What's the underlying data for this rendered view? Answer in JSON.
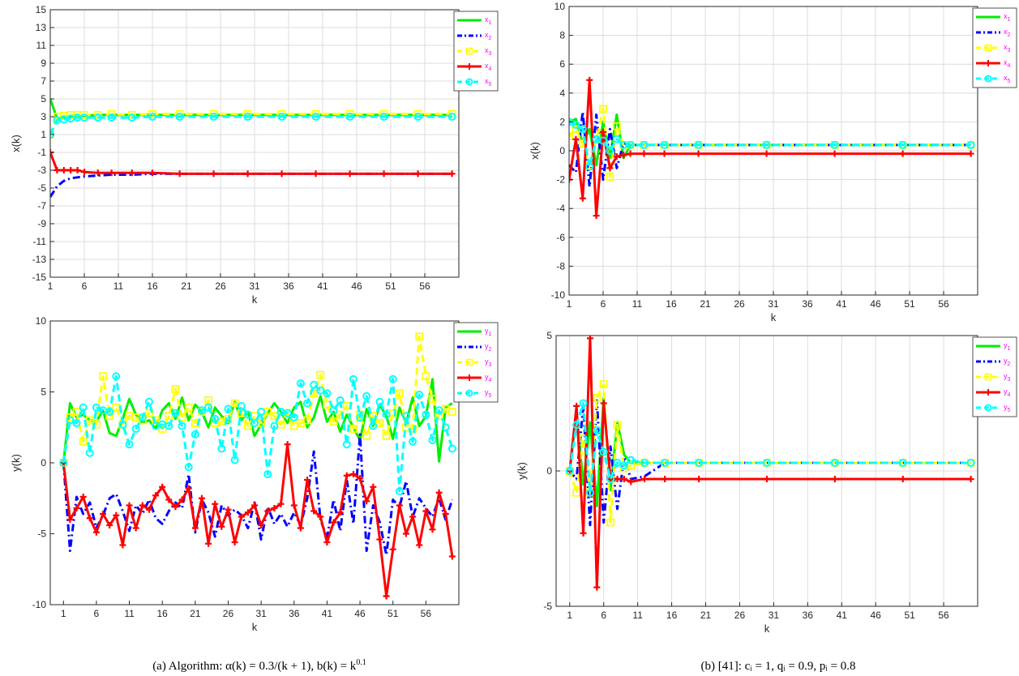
{
  "panels": {
    "a": {
      "caption": "(a) Algorithm: α(k) = 0.3/(k + 1), b(k) = k"
    },
    "b": {
      "caption": "(b) [41]: cᵢ = 1, qᵢ = 0.9, pᵢ = 0.8"
    }
  },
  "chart_data": [
    {
      "type": "line",
      "xlabel": "k",
      "ylabel": "x(k)",
      "xlim": [
        1,
        61
      ],
      "ylim": [
        -15,
        15
      ],
      "xticks": [
        1,
        6,
        11,
        16,
        21,
        26,
        31,
        36,
        41,
        46,
        51,
        56
      ],
      "yticks": [
        -15,
        -13,
        -11,
        -9,
        -7,
        -5,
        -3,
        -1,
        1,
        3,
        5,
        7,
        9,
        11,
        13,
        15
      ],
      "grid": true,
      "legend_position": "top-right",
      "x": [
        1,
        2,
        3,
        4,
        5,
        6,
        8,
        10,
        13,
        16,
        20,
        25,
        30,
        35,
        40,
        45,
        50,
        55,
        60
      ],
      "series": [
        {
          "name": "x1",
          "color": "#00ee00",
          "marker": "none",
          "style": "solid",
          "values": [
            5,
            2.8,
            3.0,
            3.0,
            3.1,
            3.1,
            3.2,
            3.2,
            3.2,
            3.2,
            3.2,
            3.2,
            3.2,
            3.2,
            3.2,
            3.2,
            3.2,
            3.2,
            3.2
          ]
        },
        {
          "name": "x2",
          "color": "#0000ff",
          "marker": "none",
          "style": "dashdot",
          "values": [
            -6,
            -4.8,
            -4.2,
            -3.9,
            -3.8,
            -3.7,
            -3.6,
            -3.5,
            -3.5,
            -3.4,
            -3.4,
            -3.4,
            -3.4,
            -3.4,
            -3.4,
            -3.4,
            -3.4,
            -3.4,
            -3.4
          ]
        },
        {
          "name": "x3",
          "color": "#ffff00",
          "marker": "square",
          "style": "dashed",
          "values": [
            1,
            3.0,
            3.1,
            3.2,
            3.2,
            3.2,
            3.2,
            3.3,
            3.2,
            3.3,
            3.3,
            3.3,
            3.3,
            3.3,
            3.3,
            3.3,
            3.3,
            3.3,
            3.3
          ]
        },
        {
          "name": "x4",
          "color": "#ff0000",
          "marker": "plus",
          "style": "solid",
          "values": [
            -1,
            -3.0,
            -3.0,
            -3.0,
            -3.0,
            -3.2,
            -3.3,
            -3.3,
            -3.3,
            -3.3,
            -3.4,
            -3.4,
            -3.4,
            -3.4,
            -3.4,
            -3.4,
            -3.4,
            -3.4,
            -3.4
          ]
        },
        {
          "name": "x5",
          "color": "#00ffff",
          "marker": "circle",
          "style": "dashed",
          "values": [
            1,
            2.6,
            2.7,
            2.8,
            2.9,
            2.9,
            2.9,
            2.9,
            2.9,
            3.0,
            3.0,
            3.0,
            3.0,
            3.0,
            3.0,
            3.0,
            3.0,
            3.0,
            3.0
          ]
        }
      ]
    },
    {
      "type": "line",
      "xlabel": "k",
      "ylabel": "x(k)",
      "xlim": [
        1,
        61
      ],
      "ylim": [
        -10,
        10
      ],
      "xticks": [
        1,
        6,
        11,
        16,
        21,
        26,
        31,
        36,
        41,
        46,
        51,
        56
      ],
      "yticks": [
        -10,
        -8,
        -6,
        -4,
        -2,
        0,
        2,
        4,
        6,
        8,
        10
      ],
      "grid": true,
      "legend_position": "top-right",
      "x": [
        1,
        2,
        3,
        4,
        5,
        6,
        7,
        8,
        9,
        10,
        12,
        15,
        20,
        30,
        40,
        50,
        60
      ],
      "series": [
        {
          "name": "x1",
          "color": "#00ee00",
          "marker": "none",
          "style": "solid",
          "values": [
            2,
            2.2,
            0.5,
            1.5,
            -1,
            2,
            -0.5,
            2.5,
            -0.5,
            0.4,
            0.4,
            0.4,
            0.4,
            0.4,
            0.4,
            0.4,
            0.4
          ]
        },
        {
          "name": "x2",
          "color": "#0000ff",
          "marker": "none",
          "style": "dashdot",
          "values": [
            -1,
            -1.5,
            2.7,
            -2.5,
            2.5,
            -2,
            1.5,
            -1.2,
            0.5,
            0.4,
            0.4,
            0.4,
            0.4,
            0.4,
            0.4,
            0.4,
            0.4
          ]
        },
        {
          "name": "x3",
          "color": "#ffff00",
          "marker": "square",
          "style": "dashed",
          "values": [
            1,
            1.5,
            0.5,
            -1,
            0.8,
            2.9,
            -1.8,
            1.7,
            0.4,
            0.4,
            0.4,
            0.4,
            0.4,
            0.4,
            0.4,
            0.4,
            0.4
          ]
        },
        {
          "name": "x4",
          "color": "#ff0000",
          "marker": "plus",
          "style": "solid",
          "values": [
            -2,
            0.8,
            -3.3,
            4.9,
            -4.5,
            1.3,
            -1.2,
            -0.4,
            -0.3,
            -0.2,
            -0.2,
            -0.2,
            -0.2,
            -0.2,
            -0.2,
            -0.2,
            -0.2
          ]
        },
        {
          "name": "x5",
          "color": "#00ffff",
          "marker": "circle",
          "style": "dashed",
          "values": [
            2,
            1.8,
            1.5,
            -1.1,
            0.8,
            0.7,
            0,
            0.8,
            0.4,
            0.4,
            0.4,
            0.4,
            0.4,
            0.4,
            0.4,
            0.4,
            0.4
          ]
        }
      ]
    },
    {
      "type": "line",
      "xlabel": "k",
      "ylabel": "y(k)",
      "xlim": [
        -1,
        61
      ],
      "ylim": [
        -10,
        10
      ],
      "xticks": [
        1,
        6,
        11,
        16,
        21,
        26,
        31,
        36,
        41,
        46,
        51,
        56
      ],
      "yticks": [
        -10,
        -5,
        0,
        5,
        10
      ],
      "grid": false,
      "legend_position": "top-right",
      "x": [
        1,
        2,
        3,
        4,
        5,
        6,
        7,
        8,
        9,
        10,
        11,
        12,
        13,
        14,
        15,
        16,
        17,
        18,
        19,
        20,
        21,
        22,
        23,
        24,
        25,
        26,
        27,
        28,
        29,
        30,
        31,
        32,
        33,
        34,
        35,
        36,
        37,
        38,
        39,
        40,
        41,
        42,
        43,
        44,
        45,
        46,
        47,
        48,
        49,
        50,
        51,
        52,
        53,
        54,
        55,
        56,
        57,
        58,
        59,
        60
      ],
      "series": [
        {
          "name": "y1",
          "color": "#00ee00",
          "marker": "none",
          "style": "solid",
          "values": [
            0,
            4.2,
            3.2,
            3.4,
            3.0,
            2.9,
            3.7,
            2.1,
            1.9,
            3.1,
            4.5,
            3.4,
            2.8,
            3.0,
            2.4,
            3.7,
            4.2,
            3.1,
            4.6,
            3.0,
            4.1,
            3.6,
            2.5,
            3.9,
            3.3,
            2.8,
            4.3,
            3.0,
            3.6,
            1.9,
            2.7,
            3.5,
            4.2,
            3.6,
            2.8,
            3.9,
            4.3,
            2.5,
            3.2,
            4.7,
            2.9,
            3.6,
            2.2,
            3.4,
            2.5,
            1.6,
            3.8,
            2.6,
            4.1,
            3.3,
            1.7,
            3.9,
            2.8,
            4.6,
            2.6,
            3.3,
            5.9,
            0.1,
            3.9,
            4.2
          ]
        },
        {
          "name": "y2",
          "color": "#0000ff",
          "marker": "none",
          "style": "dashdot",
          "values": [
            0,
            -6.2,
            -2.4,
            -3.6,
            -2.8,
            -4.6,
            -3.7,
            -2.5,
            -2.2,
            -3.4,
            -4.8,
            -3.0,
            -3.6,
            -2.6,
            -3.9,
            -4.3,
            -3.4,
            -2.8,
            -3.2,
            -0.8,
            -4.9,
            -2.6,
            -3.5,
            -5.2,
            -3.0,
            -3.7,
            -3.3,
            -3.7,
            -4.6,
            -2.8,
            -5.4,
            -3.1,
            -4.3,
            -3.6,
            -4.5,
            -3.5,
            -4.4,
            -2.5,
            0.8,
            -4.0,
            -5.3,
            -2.6,
            -4.8,
            -1.2,
            -4.3,
            2.0,
            -6.2,
            -3.0,
            -4.2,
            -6.5,
            -2.6,
            -3.1,
            -1.3,
            -3.8,
            -2.5,
            -3.2,
            -3.8,
            -2.5,
            -4.0,
            -2.6
          ]
        },
        {
          "name": "y3",
          "color": "#ffff00",
          "marker": "square",
          "style": "dashed",
          "values": [
            0,
            3.2,
            3.6,
            1.5,
            3.0,
            2.7,
            6.1,
            3.3,
            3.9,
            2.7,
            3.3,
            3.2,
            3.0,
            3.5,
            3.0,
            2.4,
            3.3,
            5.2,
            3.2,
            3.9,
            2.8,
            3.6,
            4.4,
            2.8,
            2.9,
            3.1,
            4.2,
            3.5,
            2.6,
            3.3,
            2.8,
            3.6,
            3.3,
            2.7,
            3.5,
            2.6,
            2.8,
            3.0,
            4.9,
            6.2,
            4.1,
            2.9,
            3.4,
            4.0,
            2.4,
            3.4,
            1.9,
            3.3,
            2.8,
            1.9,
            3.5,
            4.9,
            2.5,
            2.4,
            8.9,
            6.1,
            4.5,
            3.3,
            3.8,
            3.6
          ]
        },
        {
          "name": "y4",
          "color": "#ff0000",
          "marker": "plus",
          "style": "solid",
          "values": [
            0,
            -4.0,
            -3.2,
            -2.4,
            -3.9,
            -4.9,
            -3.6,
            -4.4,
            -3.7,
            -5.8,
            -3.0,
            -4.6,
            -3.0,
            -3.3,
            -2.3,
            -1.7,
            -2.6,
            -3.1,
            -2.6,
            -1.8,
            -4.6,
            -2.5,
            -5.7,
            -2.9,
            -4.5,
            -3.3,
            -5.6,
            -3.8,
            -3.5,
            -3.0,
            -4.4,
            -3.4,
            -3.2,
            -2.9,
            1.3,
            -3.0,
            -4.6,
            -1.2,
            -3.4,
            -3.8,
            -5.6,
            -4.2,
            -3.5,
            -0.9,
            -0.8,
            -1.1,
            -2.7,
            -1.7,
            -5.4,
            -9.4,
            -6.1,
            -3.0,
            -5.0,
            -3.8,
            -5.8,
            -3.4,
            -4.7,
            -2.1,
            -3.6,
            -6.6
          ]
        },
        {
          "name": "y5",
          "color": "#00ffff",
          "marker": "circle",
          "style": "dashed",
          "values": [
            0,
            3.0,
            2.8,
            3.9,
            0.7,
            3.9,
            3.7,
            3.6,
            6.1,
            2.7,
            1.3,
            2.4,
            3.2,
            4.3,
            2.6,
            2.7,
            2.6,
            3.5,
            2.6,
            -0.3,
            2.0,
            3.7,
            3.9,
            3.1,
            1.0,
            3.8,
            0.2,
            4.0,
            3.4,
            2.8,
            3.6,
            -0.8,
            2.6,
            3.6,
            3.5,
            3.2,
            5.6,
            4.2,
            5.5,
            5.1,
            4.9,
            3.7,
            4.4,
            1.3,
            5.9,
            3.2,
            4.7,
            2.6,
            4.3,
            3.4,
            5.9,
            -2.0,
            3.3,
            1.5,
            4.8,
            3.4,
            1.6,
            3.7,
            2.5,
            1.0
          ]
        }
      ]
    },
    {
      "type": "line",
      "xlabel": "k",
      "ylabel": "y(k)",
      "xlim": [
        -1,
        61
      ],
      "ylim": [
        -5,
        5
      ],
      "xticks": [
        1,
        6,
        11,
        16,
        21,
        26,
        31,
        36,
        41,
        46,
        51,
        56
      ],
      "yticks": [
        -5,
        0,
        5
      ],
      "grid": true,
      "legend_position": "top-right",
      "x": [
        1,
        2,
        3,
        4,
        5,
        6,
        7,
        8,
        9,
        10,
        12,
        15,
        20,
        30,
        40,
        50,
        60
      ],
      "series": [
        {
          "name": "y1",
          "color": "#00ee00",
          "marker": "none",
          "style": "solid",
          "values": [
            0,
            2.2,
            -0.5,
            1.8,
            -1.3,
            2.7,
            -0.7,
            1.8,
            0.6,
            0.3,
            0.3,
            0.3,
            0.3,
            0.3,
            0.3,
            0.3,
            0.3
          ]
        },
        {
          "name": "y2",
          "color": "#0000ff",
          "marker": "none",
          "style": "dashdot",
          "values": [
            0,
            -0.3,
            2.4,
            -2.0,
            2.6,
            -1.9,
            0.9,
            -1.4,
            0.5,
            -0.3,
            -0.2,
            0.3,
            0.3,
            0.3,
            0.3,
            0.3,
            0.3
          ]
        },
        {
          "name": "y3",
          "color": "#ffff00",
          "marker": "square",
          "style": "dashed",
          "values": [
            0,
            -0.8,
            1.2,
            -0.8,
            2.7,
            3.2,
            -1.9,
            1.7,
            0.1,
            0.2,
            0.3,
            0.3,
            0.3,
            0.3,
            0.3,
            0.3,
            0.3
          ]
        },
        {
          "name": "y4",
          "color": "#ff0000",
          "marker": "plus",
          "style": "solid",
          "values": [
            0,
            2.4,
            -2.3,
            4.9,
            -4.3,
            2.5,
            -0.3,
            -0.3,
            -0.3,
            -0.4,
            -0.3,
            -0.3,
            -0.3,
            -0.3,
            -0.3,
            -0.3,
            -0.3
          ]
        },
        {
          "name": "y5",
          "color": "#00ffff",
          "marker": "circle",
          "style": "dashed",
          "values": [
            0,
            1.7,
            2.5,
            -0.8,
            1.5,
            0.7,
            -0.3,
            0.3,
            0.2,
            0.4,
            0.3,
            0.3,
            0.3,
            0.3,
            0.3,
            0.3,
            0.3
          ]
        }
      ]
    }
  ]
}
